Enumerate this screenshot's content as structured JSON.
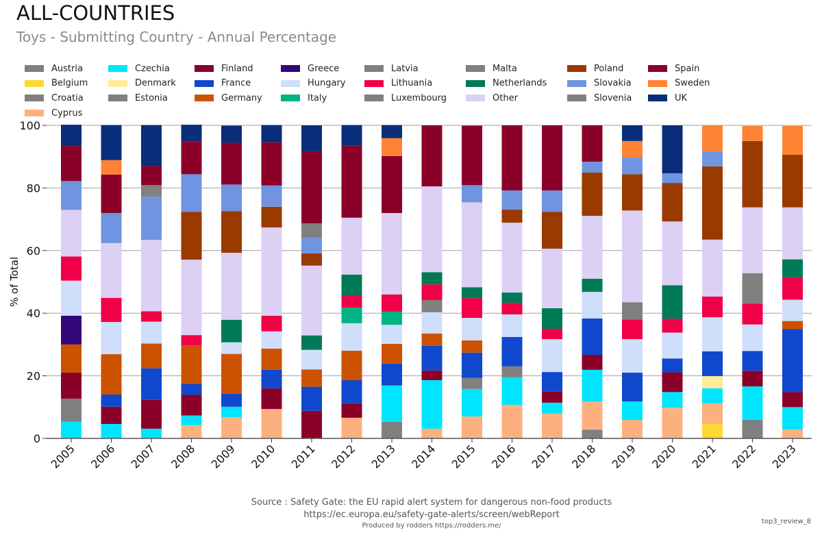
{
  "header": {
    "title": "ALL-COUNTRIES",
    "subtitle": "Toys - Submitting Country - Annual Percentage"
  },
  "footer": {
    "source": "Source : Safety Gate: the EU rapid alert system for dangerous non-food products",
    "url": "https://ec.europa.eu/safety-gate-alerts/screen/webReport",
    "credit": "Produced by rodders https://rodders.me/",
    "tag": "top3_review_8"
  },
  "chart_data": {
    "type": "bar",
    "stacked": true,
    "title": "ALL-COUNTRIES",
    "subtitle": "Toys - Submitting Country - Annual Percentage",
    "xlabel": "",
    "ylabel": "% of Total",
    "ylim": [
      0,
      100
    ],
    "yticks": [
      0,
      20,
      40,
      60,
      80,
      100
    ],
    "grid": "horizontal",
    "legend_position": "top",
    "categories": [
      "2005",
      "2006",
      "2007",
      "2008",
      "2009",
      "2010",
      "2011",
      "2012",
      "2013",
      "2014",
      "2015",
      "2016",
      "2017",
      "2018",
      "2019",
      "2020",
      "2021",
      "2022",
      "2023"
    ],
    "series": [
      {
        "name": "Austria",
        "color": "#808080",
        "values": [
          0,
          0,
          0,
          0,
          0,
          0,
          0,
          0,
          5.3,
          0,
          0,
          0,
          0,
          2.8,
          0,
          0,
          0,
          5.9,
          0
        ]
      },
      {
        "name": "Belgium",
        "color": "#FDD835",
        "values": [
          0,
          0,
          0,
          0,
          0,
          0,
          0,
          0,
          0,
          0,
          0,
          0,
          0,
          0,
          0,
          0,
          4.6,
          0,
          0
        ]
      },
      {
        "name": "Croatia",
        "color": "#808080",
        "values": [
          0,
          0,
          0,
          0,
          0,
          0,
          0,
          0,
          0,
          0,
          0,
          0,
          0,
          0,
          0,
          0,
          0,
          0,
          0
        ]
      },
      {
        "name": "Cyprus",
        "color": "#FDB07F",
        "values": [
          0,
          0,
          0,
          4.2,
          6.8,
          9.4,
          0,
          6.6,
          0,
          3.1,
          7.0,
          10.7,
          7.9,
          9.0,
          5.9,
          9.8,
          6.6,
          0,
          2.8
        ]
      },
      {
        "name": "Czechia",
        "color": "#00E5FF",
        "values": [
          5.3,
          4.6,
          3.1,
          3.1,
          3.3,
          0,
          0,
          0,
          11.6,
          15.5,
          8.8,
          8.8,
          3.5,
          10.1,
          5.9,
          5.0,
          4.8,
          10.7,
          7.2
        ]
      },
      {
        "name": "Denmark",
        "color": "#FFEB99",
        "values": [
          0,
          0,
          0,
          0,
          0,
          0,
          0,
          0,
          0,
          0,
          0,
          0,
          0,
          0,
          0,
          0,
          3.9,
          0,
          0
        ]
      },
      {
        "name": "Estonia",
        "color": "#808080",
        "values": [
          7.4,
          0,
          0,
          0,
          0,
          0,
          0,
          0,
          0,
          0,
          3.5,
          3.5,
          0,
          0,
          0,
          0,
          0,
          0,
          0
        ]
      },
      {
        "name": "Finland",
        "color": "#8B0029",
        "values": [
          8.3,
          5.5,
          9.2,
          6.6,
          0,
          6.6,
          8.8,
          4.6,
          0,
          3.1,
          0,
          0,
          3.5,
          4.8,
          0,
          6.3,
          0,
          5.0,
          4.8
        ]
      },
      {
        "name": "France",
        "color": "#0F48CC",
        "values": [
          0,
          3.9,
          10.1,
          3.5,
          4.2,
          5.9,
          7.7,
          7.4,
          7.0,
          7.9,
          8.1,
          9.4,
          6.3,
          11.6,
          9.2,
          4.4,
          7.9,
          6.3,
          20.1
        ]
      },
      {
        "name": "Germany",
        "color": "#CC5200",
        "values": [
          9.0,
          12.9,
          7.9,
          12.3,
          12.7,
          6.8,
          5.5,
          9.4,
          6.3,
          3.9,
          3.9,
          0,
          0,
          0,
          0,
          0,
          0,
          0,
          2.6
        ]
      },
      {
        "name": "Greece",
        "color": "#330777",
        "values": [
          9.2,
          0,
          0,
          0,
          0,
          0,
          0,
          0,
          0,
          0,
          0,
          0,
          0,
          0,
          0,
          0,
          0,
          0,
          0
        ]
      },
      {
        "name": "Hungary",
        "color": "#CFDEFA",
        "values": [
          11.2,
          10.3,
          7.0,
          0,
          3.7,
          5.5,
          6.3,
          8.8,
          6.1,
          6.8,
          7.2,
          7.2,
          10.5,
          8.5,
          10.7,
          8.3,
          10.9,
          8.5,
          6.8
        ]
      },
      {
        "name": "Italy",
        "color": "#00B383",
        "values": [
          0,
          0,
          0,
          0,
          0,
          0,
          0,
          5.0,
          4.2,
          0,
          0,
          0,
          0,
          0,
          0,
          0,
          0,
          0,
          0
        ]
      },
      {
        "name": "Latvia",
        "color": "#808080",
        "values": [
          0,
          0,
          0,
          0,
          0,
          0,
          0,
          0,
          0,
          3.9,
          0,
          0,
          0,
          0,
          0,
          0,
          0,
          0,
          0
        ]
      },
      {
        "name": "Lithuania",
        "color": "#F00046",
        "values": [
          7.7,
          7.7,
          3.3,
          3.3,
          0,
          5.0,
          0,
          3.7,
          5.5,
          5.0,
          6.3,
          3.7,
          3.3,
          0,
          6.3,
          4.4,
          6.6,
          6.6,
          7.2
        ]
      },
      {
        "name": "Luxembourg",
        "color": "#808080",
        "values": [
          0,
          0,
          0,
          0,
          0,
          0,
          0,
          0,
          0,
          0,
          0,
          0,
          0,
          0,
          0,
          0,
          0,
          0,
          0
        ]
      },
      {
        "name": "Malta",
        "color": "#808080",
        "values": [
          0,
          0,
          0,
          0,
          0,
          0,
          0,
          0,
          0,
          0,
          0,
          0,
          0,
          0,
          5.5,
          0,
          0,
          9.8,
          0
        ]
      },
      {
        "name": "Netherlands",
        "color": "#007A56",
        "values": [
          0,
          0,
          0,
          0,
          7.2,
          0,
          4.6,
          6.8,
          0,
          3.9,
          3.5,
          3.3,
          6.6,
          4.2,
          0,
          10.7,
          0,
          0,
          5.7
        ]
      },
      {
        "name": "Other",
        "color": "#DCD0F5",
        "values": [
          14.9,
          17.5,
          22.8,
          24.1,
          21.4,
          28.2,
          22.3,
          18.2,
          26.0,
          27.4,
          27.1,
          22.3,
          19.0,
          20.1,
          29.3,
          20.4,
          18.2,
          21.0,
          16.6
        ]
      },
      {
        "name": "Poland",
        "color": "#993A00",
        "values": [
          0,
          0,
          0,
          15.3,
          13.3,
          6.6,
          3.9,
          0,
          0,
          0,
          0,
          4.2,
          11.8,
          13.8,
          11.6,
          12.3,
          23.4,
          21.2,
          16.8
        ]
      },
      {
        "name": "Slovakia",
        "color": "#7094E0",
        "values": [
          9.2,
          9.6,
          13.8,
          12.0,
          8.5,
          6.8,
          5.0,
          0,
          0,
          0,
          5.5,
          6.1,
          6.8,
          3.5,
          5.3,
          3.1,
          4.8,
          0,
          0
        ]
      },
      {
        "name": "Slovenia",
        "color": "#808080",
        "values": [
          0,
          0,
          3.7,
          0,
          0,
          0,
          4.6,
          0,
          0,
          0,
          0,
          0,
          0,
          0,
          0,
          0,
          0,
          0,
          0
        ]
      },
      {
        "name": "Spain",
        "color": "#8B0029",
        "values": [
          11.2,
          12.3,
          6.1,
          10.5,
          13.3,
          13.8,
          23.0,
          23.0,
          18.2,
          19.5,
          19.0,
          20.8,
          20.8,
          11.6,
          0,
          0,
          0,
          0,
          0
        ]
      },
      {
        "name": "Sweden",
        "color": "#FF8333",
        "values": [
          0,
          4.6,
          0,
          0,
          0,
          0,
          0,
          0,
          5.7,
          0,
          0,
          0,
          0,
          0,
          5.3,
          0,
          8.3,
          4.8,
          9.2
        ]
      },
      {
        "name": "UK",
        "color": "#0A2D7A",
        "values": [
          6.8,
          11.2,
          13.1,
          5.3,
          5.5,
          5.5,
          8.3,
          6.6,
          4.2,
          0,
          0,
          0,
          0,
          0,
          5.0,
          15.3,
          0,
          0,
          0
        ]
      }
    ]
  }
}
